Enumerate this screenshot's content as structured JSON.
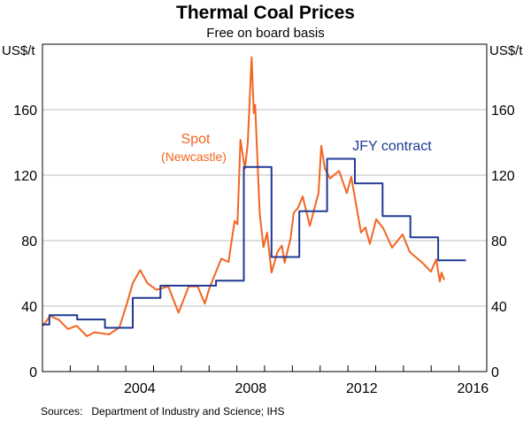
{
  "chart_data": {
    "type": "line",
    "title": "Thermal Coal Prices",
    "subtitle": "Free on board basis",
    "ylabel_left": "US$/t",
    "ylabel_right": "US$/t",
    "ylim": [
      0,
      200
    ],
    "yticks": [
      0,
      40,
      80,
      120,
      160
    ],
    "ytick_labels": [
      "0",
      "40",
      "80",
      "120",
      "160"
    ],
    "xlim": [
      2001,
      2017
    ],
    "xticks_minor": [
      2002,
      2003,
      2004,
      2005,
      2006,
      2007,
      2008,
      2009,
      2010,
      2011,
      2012,
      2013,
      2014,
      2015,
      2016
    ],
    "xtick_labels": [
      {
        "year": 2004,
        "label": "2004"
      },
      {
        "year": 2008,
        "label": "2008"
      },
      {
        "year": 2012,
        "label": "2012"
      },
      {
        "year": 2016,
        "label": "2016"
      }
    ],
    "grid": true,
    "series": [
      {
        "name": "Spot",
        "label_line1": "Spot",
        "label_line2": "(Newcastle)",
        "color": "#F26522",
        "style": "line",
        "x": [
          2001.01,
          2001.28,
          2001.6,
          2001.91,
          2002.23,
          2002.6,
          2002.87,
          2003.4,
          2003.77,
          2004.04,
          2004.25,
          2004.52,
          2004.78,
          2005.1,
          2005.53,
          2005.9,
          2006.27,
          2006.59,
          2006.85,
          2007.01,
          2007.44,
          2007.7,
          2007.92,
          2008.02,
          2008.13,
          2008.29,
          2008.39,
          2008.53,
          2008.61,
          2008.66,
          2008.82,
          2008.96,
          2009.09,
          2009.25,
          2009.46,
          2009.62,
          2009.72,
          2009.93,
          2010.05,
          2010.2,
          2010.37,
          2010.63,
          2010.94,
          2011.04,
          2011.17,
          2011.36,
          2011.68,
          2011.96,
          2012.12,
          2012.47,
          2012.63,
          2012.79,
          2013.02,
          2013.27,
          2013.59,
          2013.97,
          2014.23,
          2014.67,
          2014.99,
          2015.18,
          2015.31,
          2015.37,
          2015.47
        ],
        "y": [
          28,
          34,
          31.5,
          26,
          28,
          21.6,
          24,
          22.7,
          27,
          41.5,
          54,
          62,
          54,
          50,
          52,
          36,
          52,
          52,
          41.5,
          51,
          69,
          67,
          92,
          90,
          141.6,
          124,
          139,
          192,
          158,
          163,
          97,
          76,
          85,
          60.5,
          73,
          77,
          66.5,
          81,
          97,
          100,
          107,
          89,
          109,
          138,
          124,
          118,
          122.6,
          109,
          119,
          85,
          88,
          78,
          93,
          87.6,
          75.7,
          83.8,
          73,
          66.7,
          61,
          68.5,
          55,
          60.5,
          56
        ]
      },
      {
        "name": "JFY contract",
        "label_line1": "JFY contract",
        "color": "#1F3A93",
        "style": "step",
        "x": [
          2001.0,
          2001.25,
          2002.25,
          2003.25,
          2004.25,
          2005.25,
          2006.25,
          2007.25,
          2008.25,
          2009.25,
          2010.25,
          2011.25,
          2012.25,
          2013.25,
          2014.25,
          2015.25,
          2016.25
        ],
        "y": [
          28.75,
          34.5,
          31.85,
          26.75,
          45,
          52.5,
          52.5,
          55.5,
          125,
          70,
          98,
          130,
          115,
          95,
          82,
          68,
          68
        ]
      }
    ],
    "source": "Sources:   Department of Industry and Science; IHS"
  }
}
